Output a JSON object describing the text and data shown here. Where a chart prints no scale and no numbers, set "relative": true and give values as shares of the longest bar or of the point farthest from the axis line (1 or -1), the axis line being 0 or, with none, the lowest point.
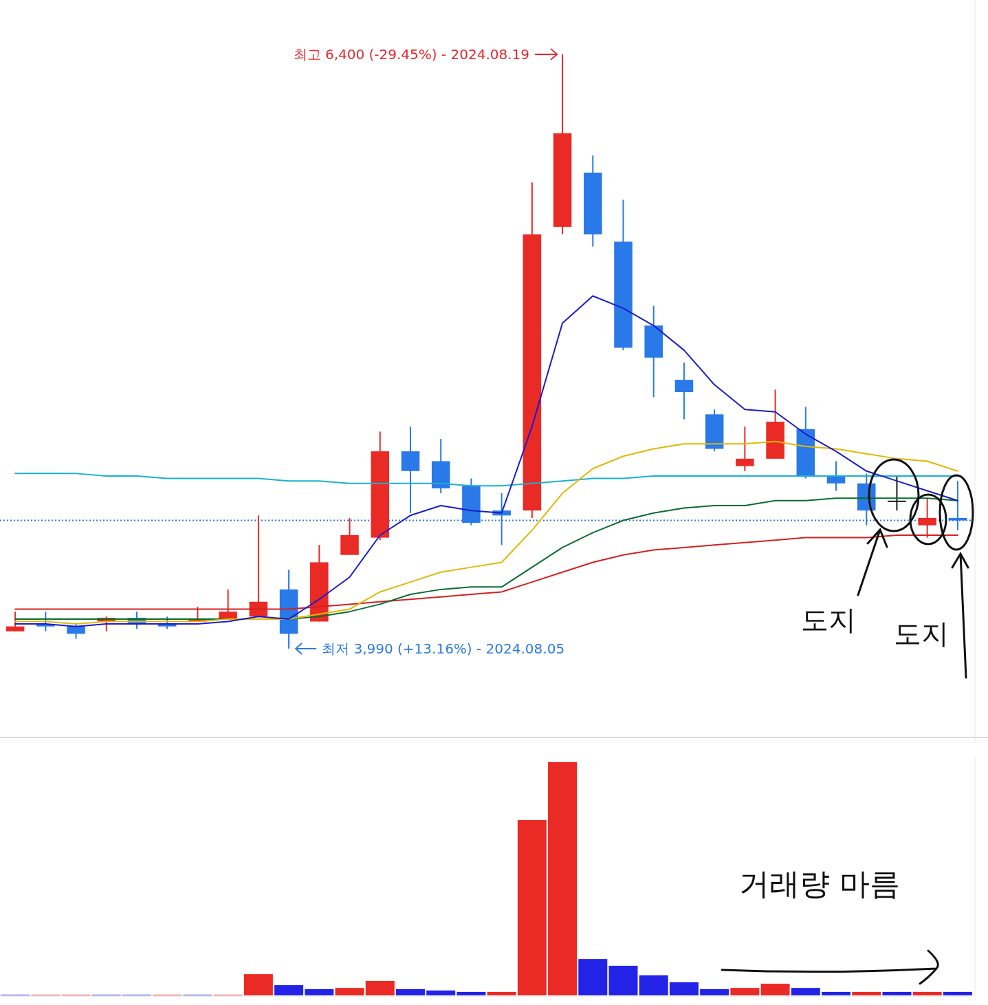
{
  "chart_data": [
    {
      "type": "candlestick",
      "ylim": [
        3630,
        6620
      ],
      "categories": [
        null,
        null,
        null,
        null,
        null,
        null,
        null,
        null,
        null,
        null,
        null,
        null,
        null,
        null,
        null,
        null,
        null,
        null,
        null,
        null,
        null,
        null,
        null,
        null,
        null,
        null,
        null,
        null,
        null,
        null,
        null,
        null
      ],
      "ohlc": [
        [
          4060,
          4140,
          4060,
          4080
        ],
        [
          4090,
          4140,
          4060,
          4080
        ],
        [
          4080,
          4090,
          4030,
          4050
        ],
        [
          4100,
          4120,
          4060,
          4115
        ],
        [
          4115,
          4140,
          4070,
          4090
        ],
        [
          4090,
          4120,
          4070,
          4080
        ],
        [
          4100,
          4160,
          4100,
          4110
        ],
        [
          4110,
          4230,
          4110,
          4140
        ],
        [
          4120,
          4530,
          4120,
          4180
        ],
        [
          4230,
          4310,
          3990,
          4050
        ],
        [
          4100,
          4410,
          4100,
          4340
        ],
        [
          4370,
          4520,
          4370,
          4450
        ],
        [
          4440,
          4870,
          4430,
          4790
        ],
        [
          4790,
          4890,
          4540,
          4710
        ],
        [
          4750,
          4840,
          4620,
          4640
        ],
        [
          4650,
          4680,
          4490,
          4500
        ],
        [
          4550,
          4620,
          4410,
          4530
        ],
        [
          4550,
          5880,
          4520,
          5670
        ],
        [
          5700,
          6400,
          5670,
          6080
        ],
        [
          5920,
          5990,
          5620,
          5670
        ],
        [
          5640,
          5810,
          5200,
          5210
        ],
        [
          5300,
          5380,
          5010,
          5170
        ],
        [
          5080,
          5150,
          4920,
          5030
        ],
        [
          4940,
          4960,
          4790,
          4800
        ],
        [
          4730,
          4890,
          4710,
          4760
        ],
        [
          4760,
          5040,
          4760,
          4910
        ],
        [
          4880,
          4970,
          4680,
          4690
        ],
        [
          4690,
          4750,
          4630,
          4660
        ],
        [
          4660,
          4700,
          4490,
          4550
        ],
        [
          4590,
          4690,
          4550,
          4590
        ],
        [
          4490,
          4600,
          4440,
          4520
        ],
        [
          4520,
          4670,
          4470,
          4510
        ]
      ],
      "colors": [
        "#ea2a25",
        "#2979e8",
        "#2979e8",
        "#ea2a25",
        "#2979e8",
        "#2979e8",
        "#ea2a25",
        "#ea2a25",
        "#ea2a25",
        "#2979e8",
        "#ea2a25",
        "#ea2a25",
        "#ea2a25",
        "#2979e8",
        "#2979e8",
        "#2979e8",
        "#2979e8",
        "#ea2a25",
        "#ea2a25",
        "#2979e8",
        "#2979e8",
        "#2979e8",
        "#2979e8",
        "#2979e8",
        "#ea2a25",
        "#ea2a25",
        "#2979e8",
        "#2979e8",
        "#2979e8",
        "#1a1a1a",
        "#ea2a25",
        "#2979e8"
      ],
      "series": [
        {
          "type": "line",
          "color": "#1ab0d0",
          "values": [
            4700,
            4700,
            4700,
            4690,
            4690,
            4680,
            4680,
            4680,
            4680,
            4670,
            4670,
            4660,
            4660,
            4660,
            4660,
            4650,
            4650,
            4660,
            4670,
            4680,
            4680,
            4690,
            4690,
            4690,
            4690,
            4690,
            4690,
            4690,
            4690,
            4690,
            4690,
            4690
          ]
        },
        {
          "type": "line",
          "color": "#d42020",
          "values": [
            4150,
            4150,
            4150,
            4150,
            4150,
            4150,
            4150,
            4150,
            4150,
            4150,
            4160,
            4170,
            4180,
            4190,
            4200,
            4210,
            4220,
            4260,
            4300,
            4340,
            4370,
            4390,
            4400,
            4410,
            4420,
            4430,
            4440,
            4440,
            4440,
            4450,
            4450,
            4450
          ]
        },
        {
          "type": "line",
          "color": "#0a6b30",
          "values": [
            4110,
            4110,
            4110,
            4110,
            4110,
            4110,
            4110,
            4110,
            4110,
            4110,
            4120,
            4140,
            4170,
            4210,
            4230,
            4240,
            4240,
            4320,
            4400,
            4460,
            4510,
            4540,
            4560,
            4570,
            4570,
            4590,
            4590,
            4600,
            4600,
            4600,
            4600,
            4590
          ]
        },
        {
          "type": "line",
          "color": "#e0b800",
          "values": [
            4100,
            4100,
            4090,
            4100,
            4100,
            4100,
            4100,
            4110,
            4110,
            4110,
            4130,
            4150,
            4220,
            4260,
            4300,
            4320,
            4340,
            4470,
            4620,
            4720,
            4770,
            4800,
            4820,
            4820,
            4820,
            4830,
            4810,
            4800,
            4780,
            4760,
            4750,
            4710
          ]
        },
        {
          "type": "line",
          "color": "#1a1acc",
          "values": [
            4090,
            4090,
            4080,
            4090,
            4090,
            4090,
            4090,
            4100,
            4120,
            4110,
            4190,
            4280,
            4450,
            4530,
            4570,
            4550,
            4540,
            4890,
            5310,
            5420,
            5370,
            5300,
            5200,
            5060,
            4960,
            4950,
            4860,
            4790,
            4710,
            4670,
            4630,
            4590
          ]
        }
      ],
      "ref_lines": [
        {
          "axis": "y",
          "value": 4510,
          "color": "#2979e8",
          "line_style": "dotted"
        }
      ],
      "annotations": [
        "최고 6,400 (-29.45%) - 2024.08.19",
        "최저 3,990 (+13.16%) - 2024.08.05",
        "도지",
        "도지"
      ]
    },
    {
      "type": "bar",
      "relative": true,
      "categories": [
        null,
        null,
        null,
        null,
        null,
        null,
        null,
        null,
        null,
        null,
        null,
        null,
        null,
        null,
        null,
        null,
        null,
        null,
        null,
        null,
        null,
        null,
        null,
        null,
        null,
        null,
        null,
        null,
        null,
        null,
        null,
        null
      ],
      "values": [
        0.003,
        0.003,
        0.003,
        0.003,
        0.003,
        0.003,
        0.003,
        0.003,
        0.091,
        0.044,
        0.027,
        0.032,
        0.062,
        0.027,
        0.021,
        0.015,
        0.015,
        0.752,
        1,
        0.156,
        0.127,
        0.086,
        0.056,
        0.027,
        0.032,
        0.05,
        0.032,
        0.015,
        0.015,
        0.015,
        0.015,
        0.015
      ],
      "colors": [
        "#2323e8",
        "#ea2a25",
        "#ea2a25",
        "#2323e8",
        "#2323e8",
        "#ea2a25",
        "#2323e8",
        "#ea2a25",
        "#ea2a25",
        "#2323e8",
        "#2323e8",
        "#ea2a25",
        "#ea2a25",
        "#2323e8",
        "#2323e8",
        "#2323e8",
        "#ea2a25",
        "#ea2a25",
        "#ea2a25",
        "#2323e8",
        "#2323e8",
        "#2323e8",
        "#2323e8",
        "#2323e8",
        "#ea2a25",
        "#ea2a25",
        "#2323e8",
        "#2323e8",
        "#ea2a25",
        "#2323e8",
        "#ea2a25",
        "#2323e8"
      ],
      "annotations": [
        "거래량 마름"
      ]
    }
  ]
}
